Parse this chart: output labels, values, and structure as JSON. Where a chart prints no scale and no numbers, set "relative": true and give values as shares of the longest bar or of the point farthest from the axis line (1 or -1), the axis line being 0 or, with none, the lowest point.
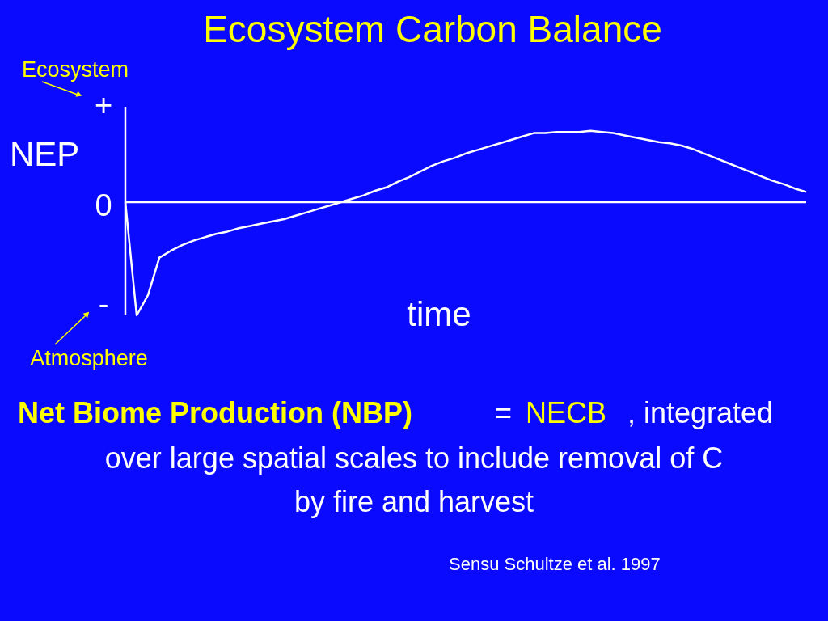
{
  "chart_data": {
    "type": "line",
    "title": "Ecosystem Carbon Balance",
    "xlabel": "time",
    "ylabel": "NEP",
    "relative": true,
    "categories": [
      null,
      null,
      null,
      null,
      null,
      null,
      null,
      null,
      null,
      null,
      null,
      null,
      null,
      null,
      null,
      null,
      null,
      null,
      null,
      null,
      null,
      null,
      null,
      null,
      null,
      null,
      null,
      null,
      null,
      null,
      null,
      null,
      null,
      null,
      null,
      null,
      null,
      null,
      null,
      null,
      null,
      null,
      null,
      null,
      null,
      null,
      null,
      null,
      null,
      null,
      null,
      null,
      null,
      null,
      null,
      null,
      null,
      null,
      null,
      null,
      null
    ],
    "series": [
      {
        "color": "#ffffff",
        "values": [
          0,
          -1,
          -0.82,
          -0.49,
          -0.43,
          -0.38,
          -0.34,
          -0.31,
          -0.28,
          -0.26,
          -0.23,
          -0.21,
          -0.19,
          -0.17,
          -0.15,
          -0.12,
          -0.09,
          -0.06,
          -0.03,
          0,
          0.03,
          0.06,
          0.1,
          0.13,
          0.18,
          0.22,
          0.27,
          0.32,
          0.36,
          0.39,
          0.43,
          0.46,
          0.49,
          0.52,
          0.55,
          0.58,
          0.61,
          0.61,
          0.62,
          0.62,
          0.62,
          0.63,
          0.62,
          0.61,
          0.59,
          0.57,
          0.55,
          0.53,
          0.52,
          0.5,
          0.47,
          0.43,
          0.39,
          0.35,
          0.31,
          0.27,
          0.23,
          0.19,
          0.16,
          0.12,
          0.09
        ]
      }
    ],
    "annotations": [
      "+",
      "0",
      "-",
      "Ecosystem",
      "Atmosphere",
      "Net Biome Production (NBP)",
      "=",
      "NECB",
      ", integrated",
      "over large spatial scales to include removal of C",
      "by fire and harvest",
      "Sensu Schultze et al. 1997"
    ]
  }
}
